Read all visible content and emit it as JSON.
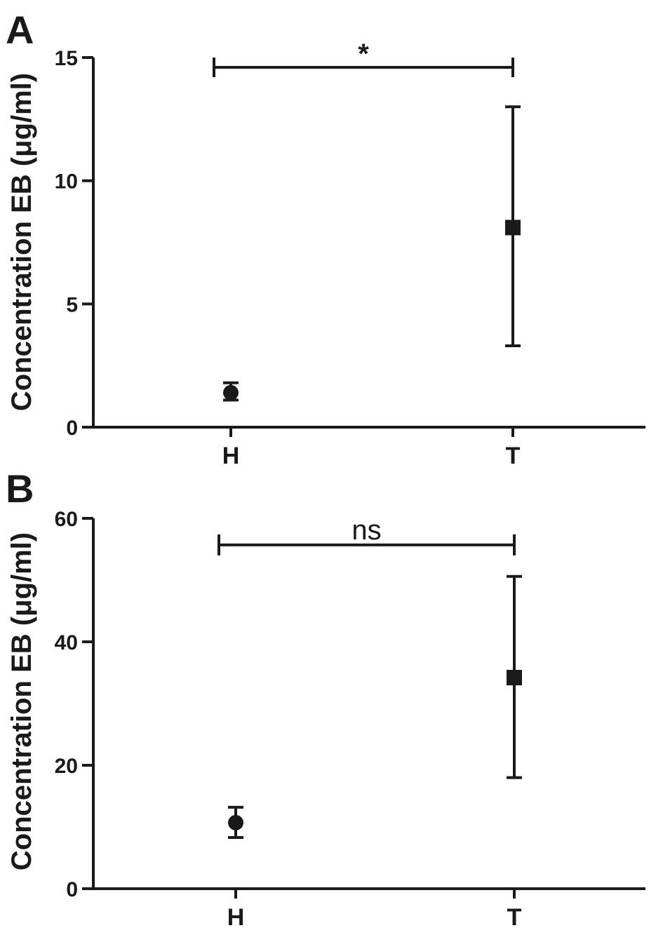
{
  "chart_data": [
    {
      "panel_label": "A",
      "type": "scatter",
      "ylabel": "Concentration EB (μg/ml)",
      "ylim": [
        0,
        15
      ],
      "yticks": [
        0,
        5,
        10,
        15
      ],
      "categories": [
        "H",
        "T"
      ],
      "points": [
        {
          "category": "H",
          "value": 1.4,
          "err_low": 1.1,
          "err_high": 1.8,
          "marker": "circle"
        },
        {
          "category": "T",
          "value": 8.1,
          "err_low": 3.3,
          "err_high": 13.0,
          "marker": "square"
        }
      ],
      "significance": {
        "label": "*",
        "from": "H",
        "to": "T",
        "y": 14.6
      }
    },
    {
      "panel_label": "B",
      "type": "scatter",
      "ylabel": "Concentration EB (μg/ml)",
      "ylim": [
        0,
        60
      ],
      "yticks": [
        0,
        20,
        40,
        60
      ],
      "categories": [
        "H",
        "T"
      ],
      "points": [
        {
          "category": "H",
          "value": 10.7,
          "err_low": 8.3,
          "err_high": 13.2,
          "marker": "circle"
        },
        {
          "category": "T",
          "value": 34.2,
          "err_low": 18.0,
          "err_high": 50.6,
          "marker": "square"
        }
      ],
      "significance": {
        "label": "ns",
        "from": "H",
        "to": "T",
        "y": 55.7
      }
    }
  ]
}
